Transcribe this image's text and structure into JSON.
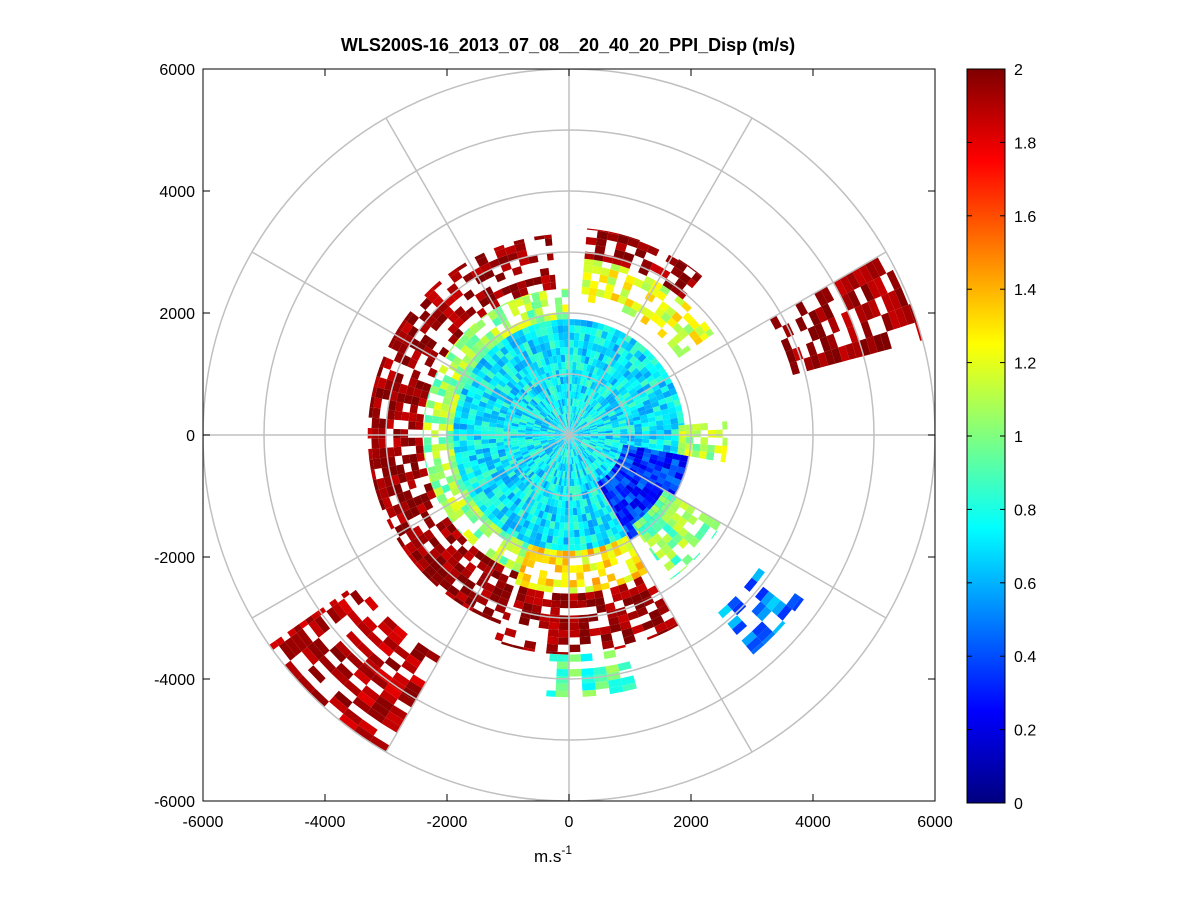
{
  "chart_data": {
    "type": "heatmap",
    "subtype": "polar-ppi",
    "title": "WLS200S-16_2013_07_08__20_40_20_PPI_Disp (m/s)",
    "xlabel_base": "m.s",
    "xlabel_sup": "-1",
    "ylabel": "",
    "xlim": [
      -6000,
      6000
    ],
    "ylim": [
      -6000,
      6000
    ],
    "xticks": [
      -6000,
      -4000,
      -2000,
      0,
      2000,
      4000,
      6000
    ],
    "yticks": [
      6000,
      4000,
      2000,
      0,
      -2000,
      -4000,
      -6000
    ],
    "range_rings": [
      1000,
      2000,
      3000,
      4000,
      5000,
      6000
    ],
    "spoke_angles_deg": [
      0,
      30,
      60,
      90,
      120,
      150,
      180,
      210,
      240,
      270,
      300,
      330
    ],
    "grid": true,
    "colorbar": {
      "colormap": "jet",
      "min": 0,
      "max": 2,
      "ticks": [
        "0",
        "0.2",
        "0.4",
        "0.6",
        "0.8",
        "1",
        "1.2",
        "1.4",
        "1.6",
        "1.8",
        "2"
      ]
    },
    "data_description_units": "m/s",
    "sectors": [
      {
        "az_from": 0,
        "az_to": 360,
        "range_from": 0,
        "range_to": 1900,
        "value": 0.72
      },
      {
        "az_from": 100,
        "az_to": 150,
        "range_from": 900,
        "range_to": 2000,
        "value": 0.35
      },
      {
        "az_from": 200,
        "az_to": 345,
        "range_from": 1900,
        "range_to": 2400,
        "value": 1.05
      },
      {
        "az_from": 345,
        "az_to": 360,
        "range_from": 1900,
        "range_to": 2400,
        "value": 1.1
      },
      {
        "az_from": 200,
        "az_to": 355,
        "range_from": 2400,
        "range_to": 3300,
        "value": 1.95
      },
      {
        "az_from": 5,
        "az_to": 55,
        "range_from": 2200,
        "range_to": 2900,
        "value": 1.2
      },
      {
        "az_from": 5,
        "az_to": 40,
        "range_from": 2900,
        "range_to": 3400,
        "value": 1.95
      },
      {
        "az_from": 150,
        "az_to": 200,
        "range_from": 1900,
        "range_to": 2600,
        "value": 1.3
      },
      {
        "az_from": 150,
        "az_to": 200,
        "range_from": 2600,
        "range_to": 3600,
        "value": 1.95
      },
      {
        "az_from": 165,
        "az_to": 185,
        "range_from": 3600,
        "range_to": 4300,
        "value": 0.9
      },
      {
        "az_from": 120,
        "az_to": 145,
        "range_from": 1800,
        "range_to": 2900,
        "value": 1.0
      },
      {
        "az_from": 125,
        "az_to": 140,
        "range_from": 3800,
        "range_to": 4700,
        "value": 0.5
      },
      {
        "az_from": 210,
        "az_to": 235,
        "range_from": 4200,
        "range_to": 6000,
        "value": 1.9
      },
      {
        "az_from": 60,
        "az_to": 75,
        "range_from": 3800,
        "range_to": 6000,
        "value": 1.95
      },
      {
        "az_from": 85,
        "az_to": 100,
        "range_from": 1800,
        "range_to": 2600,
        "value": 1.1
      }
    ]
  }
}
